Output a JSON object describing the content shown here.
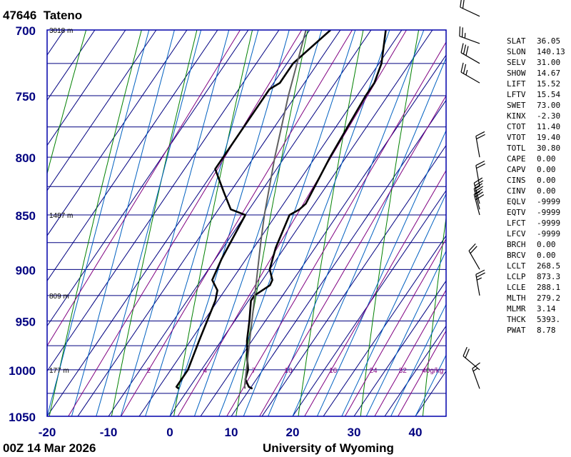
{
  "station": {
    "id": "47646",
    "name": "Tateno"
  },
  "footer": {
    "datetime": "00Z 14 Mar 2026",
    "source": "University of Wyoming"
  },
  "colors": {
    "frame": "#0000aa",
    "isotherm": "#000080",
    "isobar": "#000080",
    "dry_adiabat": "#008000",
    "moist_adiabat": "#0060c0",
    "mixing_ratio": "#800080",
    "profile": "#000000",
    "parcel": "#606060",
    "axis_label": "#000080"
  },
  "chart_data": {
    "type": "line",
    "diagram": "Skew-T log-P",
    "title": "47646 Tateno",
    "xlabel": "",
    "ylabel": "",
    "xlim": [
      -20,
      45
    ],
    "ylim": [
      1050,
      700
    ],
    "y_scale": "log",
    "x_ticks": [
      -20,
      -10,
      0,
      10,
      20,
      30,
      40
    ],
    "y_ticks": [
      700,
      750,
      800,
      850,
      900,
      950,
      1000,
      1050
    ],
    "height_labels": [
      {
        "p": 700,
        "text": "3018 m"
      },
      {
        "p": 850,
        "text": "1487 m"
      },
      {
        "p": 925,
        "text": "809 m"
      },
      {
        "p": 1000,
        "text": "177 m"
      }
    ],
    "mixing_ratio_labels": [
      "2",
      "4",
      "7",
      "10",
      "16",
      "24",
      "32",
      "40g/kg"
    ],
    "mixing_ratio_lines": [
      0.4,
      1,
      2,
      4,
      7,
      10,
      16,
      24,
      32,
      40
    ],
    "grid": true,
    "series": [
      {
        "role": "temperature",
        "points": [
          {
            "p": 1020,
            "t": 10.4
          },
          {
            "p": 1018,
            "t": 9.6
          },
          {
            "p": 1010,
            "t": 8.2
          },
          {
            "p": 1000,
            "t": 7.6
          },
          {
            "p": 990,
            "t": 6.4
          },
          {
            "p": 970,
            "t": 4.2
          },
          {
            "p": 950,
            "t": 2.4
          },
          {
            "p": 930,
            "t": 0.4
          },
          {
            "p": 925,
            "t": 0.4
          },
          {
            "p": 915,
            "t": 1.8
          },
          {
            "p": 910,
            "t": 1.6
          },
          {
            "p": 900,
            "t": 0
          },
          {
            "p": 880,
            "t": -1.4
          },
          {
            "p": 850,
            "t": -2.8
          },
          {
            "p": 845,
            "t": -1.8
          },
          {
            "p": 840,
            "t": -1.4
          },
          {
            "p": 800,
            "t": -2.6
          },
          {
            "p": 750,
            "t": -3.6
          },
          {
            "p": 740,
            "t": -3.6
          },
          {
            "p": 725,
            "t": -4.6
          },
          {
            "p": 700,
            "t": -7.6
          }
        ]
      },
      {
        "role": "dewpoint",
        "points": [
          {
            "p": 1020,
            "t": -1.6
          },
          {
            "p": 1018,
            "t": -2.2
          },
          {
            "p": 1000,
            "t": -2.2
          },
          {
            "p": 970,
            "t": -3.6
          },
          {
            "p": 930,
            "t": -5.4
          },
          {
            "p": 920,
            "t": -6.2
          },
          {
            "p": 910,
            "t": -8.2
          },
          {
            "p": 890,
            "t": -9
          },
          {
            "p": 850,
            "t": -10
          },
          {
            "p": 845,
            "t": -13
          },
          {
            "p": 830,
            "t": -16
          },
          {
            "p": 810,
            "t": -20
          },
          {
            "p": 745,
            "t": -20
          },
          {
            "p": 740,
            "t": -19
          },
          {
            "p": 725,
            "t": -19
          },
          {
            "p": 700,
            "t": -16.6
          }
        ]
      },
      {
        "role": "parcel",
        "points": [
          {
            "p": 1020,
            "t": 9.2
          },
          {
            "p": 1017,
            "t": 8.8
          },
          {
            "p": 873.3,
            "t": -4.6
          },
          {
            "p": 850,
            "t": -6.9
          },
          {
            "p": 800,
            "t": -11.6
          },
          {
            "p": 750,
            "t": -16.2
          },
          {
            "p": 700,
            "t": -20.6
          }
        ]
      }
    ],
    "wind_barbs": [
      {
        "p": 1020,
        "dir": 340,
        "spd": 15
      },
      {
        "p": 1000,
        "dir": 310,
        "spd": 20
      },
      {
        "p": 925,
        "dir": 350,
        "spd": 25
      },
      {
        "p": 900,
        "dir": 330,
        "spd": 20
      },
      {
        "p": 850,
        "dir": 345,
        "spd": 30
      },
      {
        "p": 845,
        "dir": 345,
        "spd": 25
      },
      {
        "p": 840,
        "dir": 345,
        "spd": 25
      },
      {
        "p": 825,
        "dir": 350,
        "spd": 20
      },
      {
        "p": 800,
        "dir": 350,
        "spd": 20
      },
      {
        "p": 740,
        "dir": 300,
        "spd": 25
      },
      {
        "p": 725,
        "dir": 300,
        "spd": 30
      },
      {
        "p": 710,
        "dir": 290,
        "spd": 25
      },
      {
        "p": 690,
        "dir": 295,
        "spd": 20
      }
    ]
  },
  "indices": [
    {
      "key": "SLAT",
      "value": "36.05"
    },
    {
      "key": "SLON",
      "value": "140.13"
    },
    {
      "key": "SELV",
      "value": "31.00"
    },
    {
      "key": "SHOW",
      "value": "14.67"
    },
    {
      "key": "LIFT",
      "value": "15.52"
    },
    {
      "key": "LFTV",
      "value": "15.54"
    },
    {
      "key": "SWET",
      "value": "73.00"
    },
    {
      "key": "KINX",
      "value": "-2.30"
    },
    {
      "key": "CTOT",
      "value": "11.40"
    },
    {
      "key": "VTOT",
      "value": "19.40"
    },
    {
      "key": "TOTL",
      "value": "30.80"
    },
    {
      "key": "CAPE",
      "value": "0.00"
    },
    {
      "key": "CAPV",
      "value": "0.00"
    },
    {
      "key": "CINS",
      "value": "0.00"
    },
    {
      "key": "CINV",
      "value": "0.00"
    },
    {
      "key": "EQLV",
      "value": "-9999"
    },
    {
      "key": "EQTV",
      "value": "-9999"
    },
    {
      "key": "LFCT",
      "value": "-9999"
    },
    {
      "key": "LFCV",
      "value": "-9999"
    },
    {
      "key": "BRCH",
      "value": "0.00"
    },
    {
      "key": "BRCV",
      "value": "0.00"
    },
    {
      "key": "LCLT",
      "value": "268.5"
    },
    {
      "key": "LCLP",
      "value": "873.3"
    },
    {
      "key": "LCLE",
      "value": "288.1"
    },
    {
      "key": "MLTH",
      "value": "279.2"
    },
    {
      "key": "MLMR",
      "value": "3.14"
    },
    {
      "key": "THCK",
      "value": "5393."
    },
    {
      "key": "PWAT",
      "value": "8.78"
    }
  ]
}
